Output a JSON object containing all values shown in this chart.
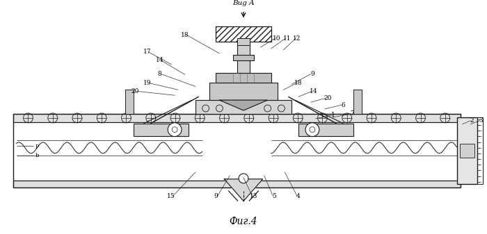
{
  "title": "Фиг.4",
  "view_label": "Bug A",
  "background": "#ffffff",
  "line_color": "#1a1a1a",
  "fig_width": 7.0,
  "fig_height": 3.37
}
